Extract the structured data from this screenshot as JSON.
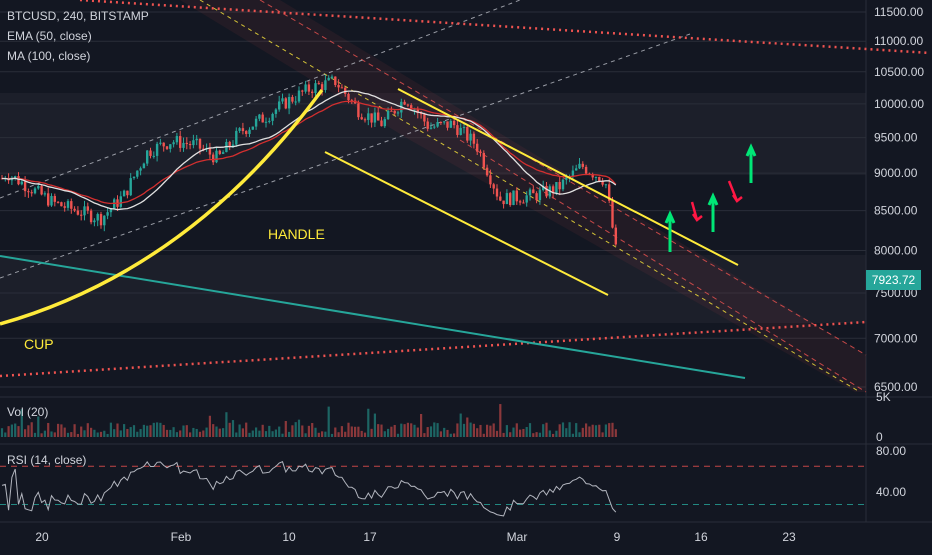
{
  "header": {
    "symbol_line": "BTCUSD, 240, BITSTAMP",
    "ema_label": "EMA (50, close)",
    "ma_label": "MA (100, close)"
  },
  "panes": {
    "volume_label": "Vol (20)",
    "rsi_label": "RSI (14, close)"
  },
  "annotations": {
    "cup": "CUP",
    "handle": "HANDLE"
  },
  "price_badge": "7923.72",
  "colors": {
    "background": "#131722",
    "up_candle": "#26a69a",
    "down_candle": "#ef5350",
    "ema": "#d32f2f",
    "ma": "#e0e0e0",
    "trendline": "#ffeb3b",
    "teal_line": "#26a69a",
    "up_arrow": "#00e676",
    "down_arrow": "#ff1744",
    "price_badge": "#26a69a"
  },
  "chart_data": [
    {
      "type": "candlestick",
      "title": "BTCUSD, 240, BITSTAMP",
      "x_ticks": [
        "20",
        "Feb",
        "10",
        "17",
        "Mar",
        "9",
        "16",
        "23"
      ],
      "y_ticks": [
        "11500.00",
        "11000.00",
        "10500.00",
        "10000.00",
        "9500.00",
        "9000.00",
        "8500.00",
        "8000.00",
        "7500.00",
        "7000.00",
        "6500.00"
      ],
      "ylim": [
        6400,
        11700
      ],
      "last_price": 7923.72,
      "scale": "log",
      "series": [
        {
          "name": "EMA (50, close)"
        },
        {
          "name": "MA (100, close)"
        }
      ],
      "price_path": [
        [
          "Jan 15",
          8650
        ],
        [
          "Jan 17",
          9000
        ],
        [
          "Jan 19",
          8800
        ],
        [
          "Jan 21",
          8600
        ],
        [
          "Jan 23",
          8500
        ],
        [
          "Jan 25",
          8400
        ],
        [
          "Jan 27",
          8700
        ],
        [
          "Jan 29",
          9300
        ],
        [
          "Jan 31",
          9450
        ],
        [
          "Feb 2",
          9400
        ],
        [
          "Feb 4",
          9200
        ],
        [
          "Feb 6",
          9600
        ],
        [
          "Feb 8",
          9800
        ],
        [
          "Feb 10",
          10050
        ],
        [
          "Feb 12",
          10250
        ],
        [
          "Feb 14",
          10350
        ],
        [
          "Feb 16",
          9900
        ],
        [
          "Feb 18",
          9700
        ],
        [
          "Feb 20",
          10100
        ],
        [
          "Feb 22",
          9650
        ],
        [
          "Feb 24",
          9700
        ],
        [
          "Feb 26",
          9400
        ],
        [
          "Feb 28",
          8650
        ],
        [
          "Mar 2",
          8700
        ],
        [
          "Mar 4",
          8800
        ],
        [
          "Mar 6",
          9100
        ],
        [
          "Mar 8",
          8900
        ],
        [
          "Mar 9",
          7900
        ]
      ],
      "annotations": [
        "CUP",
        "HANDLE"
      ]
    },
    {
      "type": "bar",
      "title": "Vol (20)",
      "y_ticks": [
        "5K",
        "0"
      ],
      "ylim": [
        0,
        5000
      ]
    },
    {
      "type": "line",
      "title": "RSI (14, close)",
      "y_ticks": [
        "80.00",
        "40.00"
      ],
      "ylim": [
        20,
        85
      ],
      "bands": [
        70,
        30
      ]
    }
  ]
}
